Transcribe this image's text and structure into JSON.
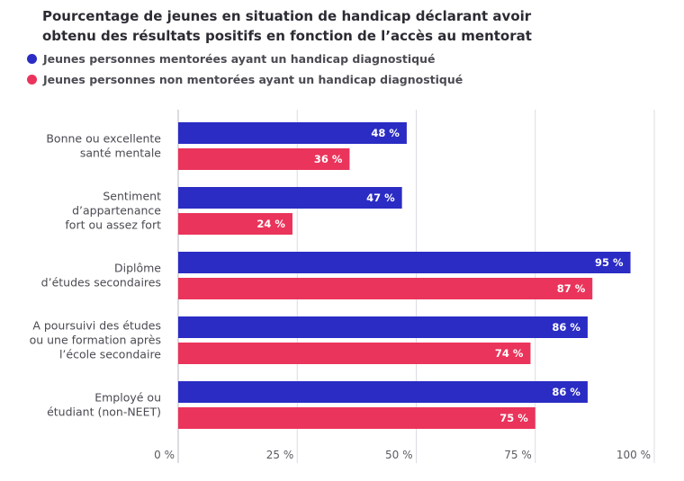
{
  "chart_data": {
    "type": "bar",
    "orientation": "horizontal",
    "title": "Pourcentage de jeunes en situation de handicap déclarant avoir obtenu des résultats positifs en fonction de l’accès au mentorat",
    "categories": [
      [
        "Bonne ou excellente",
        "santé mentale"
      ],
      [
        "Sentiment",
        "d’appartenance",
        "fort ou assez fort"
      ],
      [
        "Diplôme",
        "d’études secondaires"
      ],
      [
        "A poursuivi des études",
        "ou une formation après",
        "l’école secondaire"
      ],
      [
        "Employé ou",
        "étudiant (non-NEET)"
      ]
    ],
    "series": [
      {
        "name": "Jeunes personnes mentorées ayant un handicap diagnostiqué",
        "color": "#2a2cc4",
        "values": [
          48,
          47,
          95,
          86,
          86
        ]
      },
      {
        "name": "Jeunes personnes non mentorées ayant un handicap diagnostiqué",
        "color": "#ea345b",
        "values": [
          36,
          24,
          87,
          74,
          75
        ]
      }
    ],
    "value_labels": [
      [
        "48 %",
        "47 %",
        "95 %",
        "86 %",
        "86 %"
      ],
      [
        "36 %",
        "24 %",
        "87 %",
        "74 %",
        "75 %"
      ]
    ],
    "xlim": [
      0,
      100
    ],
    "xticks": [
      "0 %",
      "25 %",
      "50 %",
      "75 %",
      "100 %"
    ],
    "grid": true,
    "legend_position": "top-left"
  }
}
